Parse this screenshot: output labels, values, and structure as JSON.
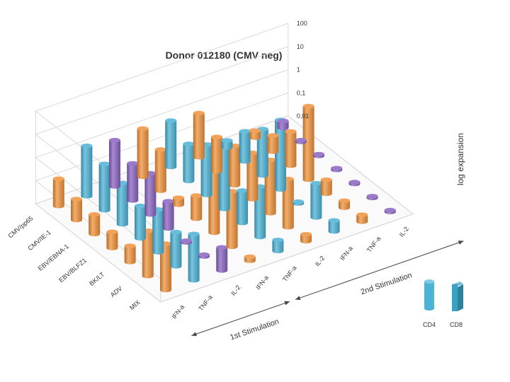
{
  "chart_data": {
    "type": "bar",
    "title": "Donor 012180 (CMV neg)",
    "zlabel": "log expansion",
    "scale": "log",
    "zlim": [
      0.01,
      100
    ],
    "ticks": [
      "0,01",
      "0,1",
      "1",
      "10",
      "100"
    ],
    "tick_values": [
      0.01,
      0.1,
      1,
      10,
      100
    ],
    "rows": [
      "CMV/pp65",
      "CMV/IE-1",
      "EBV/EBNA-1",
      "EBV/BLFZ1",
      "BK/LT",
      "ADV",
      "MIX"
    ],
    "first_stimulation": {
      "label": "1st Stimulation",
      "categories": [
        "IFN-a",
        "TNF-a",
        "IL-2"
      ]
    },
    "second_stimulation": {
      "label": "2nd Stimulation",
      "categories": [
        "IFN-a",
        "TNF-a",
        "IL-2",
        "IFN-a",
        "TNF-a",
        "IL-2"
      ]
    },
    "legend": [
      {
        "name": "CD4",
        "color": "#4bb3d6"
      },
      {
        "name": "CD8",
        "color": "#3aa2c2"
      }
    ],
    "colors": {
      "orange": "#f0923a",
      "cyan": "#4bb3d6",
      "purple": "#8a63c2"
    },
    "series": [
      {
        "column": 0,
        "color": "orange",
        "values": [
          0.15,
          0.08,
          0.07,
          0.05,
          0.05,
          0.9,
          1.0
        ]
      },
      {
        "column": 1,
        "color": "cyan",
        "values": [
          1.5,
          1.0,
          0.6,
          0.25,
          0.7,
          0.3,
          1.0
        ]
      },
      {
        "column": 2,
        "color": "purple",
        "values": [
          1.0,
          0.4,
          0.6,
          0.15,
          0.01,
          0.012,
          0.1
        ]
      },
      {
        "column": 3,
        "color": "orange",
        "values": [
          1.2,
          0.6,
          0.02,
          0.1,
          10,
          2.5,
          0.015
        ]
      },
      {
        "column": 4,
        "color": "cyan",
        "values": [
          1.0,
          0.4,
          1.5,
          5.0,
          0.25,
          1.5,
          0.03
        ]
      },
      {
        "column": 5,
        "color": "orange",
        "values": [
          0.8,
          0.3,
          0.5,
          1.0,
          2.0,
          1.2,
          0.02
        ]
      },
      {
        "column": 6,
        "color": "cyan",
        "values": [
          0.02,
          0.2,
          1.0,
          10,
          0.01,
          0.3,
          0.03
        ]
      },
      {
        "column": 7,
        "color": "orange",
        "values": [
          0.02,
          0.05,
          0.3,
          15,
          0.04,
          0.02,
          0.02
        ]
      },
      {
        "column": 8,
        "color": "purple",
        "values": [
          0.02,
          0.01,
          0.01,
          0.01,
          0.01,
          0.01,
          0.012
        ]
      }
    ]
  }
}
